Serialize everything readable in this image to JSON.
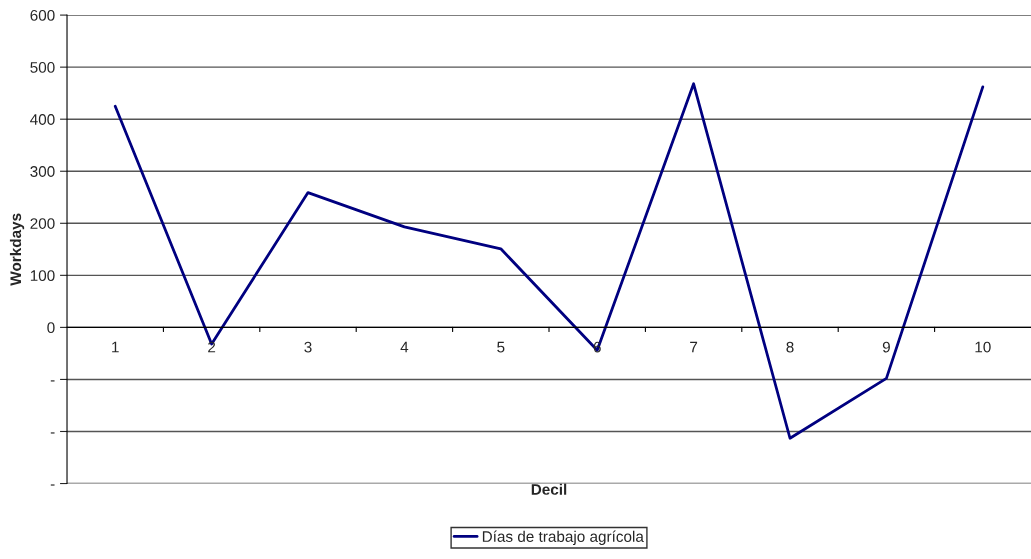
{
  "chart_data": {
    "type": "line",
    "xlabel": "Decil",
    "ylabel": "Workdays",
    "categories": [
      "1",
      "2",
      "3",
      "4",
      "5",
      "6",
      "7",
      "8",
      "9",
      "10"
    ],
    "series": [
      {
        "name": "Días de trabajo agrícola",
        "color": "#000080",
        "values": [
          425,
          -32,
          259,
          193,
          151,
          -44,
          468,
          -213,
          -98,
          462
        ]
      }
    ],
    "ylim": [
      -300,
      600
    ],
    "yticks": [
      {
        "value": -300,
        "label": "-"
      },
      {
        "value": -200,
        "label": "-"
      },
      {
        "value": -100,
        "label": "-"
      },
      0,
      100,
      200,
      300,
      400,
      500,
      600
    ],
    "grid": "y",
    "legend": "bottom",
    "marker": "none",
    "line_style": "solid"
  }
}
